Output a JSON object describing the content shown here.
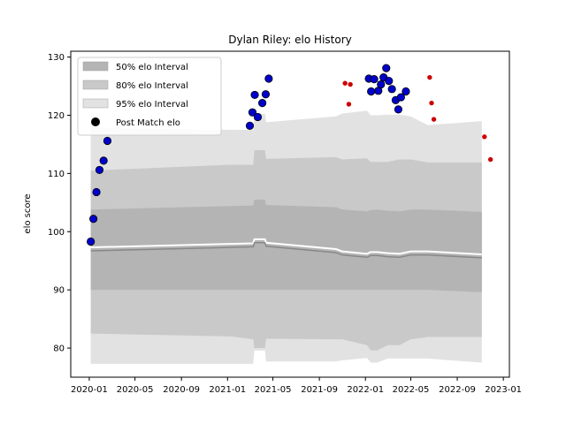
{
  "chart_data": {
    "type": "area",
    "title": "Dylan Riley: elo History",
    "xlabel": "",
    "ylabel": "elo score",
    "xlim": [
      "2019-11-13",
      "2023-01-17"
    ],
    "ylim": [
      75,
      131
    ],
    "x_ticks": [
      "2020-01",
      "2020-05",
      "2020-09",
      "2021-01",
      "2021-05",
      "2021-09",
      "2022-01",
      "2022-05",
      "2022-09",
      "2023-01"
    ],
    "y_ticks": [
      80,
      90,
      100,
      110,
      120,
      130
    ],
    "grid": false,
    "legend_position": "top-left",
    "legend": [
      {
        "label": "50% elo Interval",
        "color": "#b4b4b4"
      },
      {
        "label": "80% elo Interval",
        "color": "#c9c9c9"
      },
      {
        "label": "95% elo Interval",
        "color": "#e2e2e2"
      },
      {
        "label": "Post Match elo",
        "color": "#000000"
      }
    ],
    "bands": {
      "dates": [
        "2020-01-05",
        "2021-01-10",
        "2021-03-10",
        "2021-03-13",
        "2021-04-10",
        "2021-04-13",
        "2021-10-15",
        "2021-11-01",
        "2022-01-05",
        "2022-01-15",
        "2022-02-01",
        "2022-03-01",
        "2022-04-01",
        "2022-05-01",
        "2022-06-15",
        "2022-11-05"
      ],
      "mean": [
        96.7,
        97.3,
        97.4,
        98.1,
        98.1,
        97.5,
        96.4,
        96.0,
        95.6,
        95.9,
        95.9,
        95.7,
        95.6,
        96.0,
        96.0,
        95.5
      ],
      "p50_lower": [
        90.0,
        90.0,
        90.0,
        90.0,
        90.0,
        90.0,
        90.0,
        90.0,
        90.0,
        90.0,
        90.0,
        90.0,
        90.0,
        90.0,
        90.0,
        89.6
      ],
      "p50_upper": [
        103.8,
        104.4,
        104.5,
        105.5,
        105.5,
        104.6,
        104.2,
        103.8,
        103.5,
        103.7,
        103.8,
        103.6,
        103.5,
        103.8,
        103.8,
        103.4
      ],
      "p80_lower": [
        82.5,
        82.0,
        81.5,
        80.0,
        80.0,
        81.6,
        81.5,
        81.5,
        80.5,
        79.6,
        79.6,
        80.5,
        80.5,
        81.5,
        81.9,
        81.9
      ],
      "p80_upper": [
        110.5,
        111.5,
        111.5,
        114.0,
        114.0,
        112.5,
        112.8,
        112.4,
        112.6,
        112.0,
        112.0,
        112.0,
        112.4,
        112.4,
        111.9,
        111.9
      ],
      "p95_lower": [
        77.3,
        77.3,
        77.3,
        79.6,
        79.6,
        77.7,
        77.7,
        77.9,
        78.3,
        77.5,
        77.5,
        78.2,
        78.2,
        78.2,
        78.2,
        77.5
      ],
      "p95_upper": [
        117.8,
        117.5,
        117.5,
        120.2,
        120.2,
        118.8,
        119.8,
        120.3,
        120.8,
        120.0,
        120.0,
        120.1,
        120.1,
        119.8,
        118.3,
        119.0
      ]
    },
    "series": [
      {
        "name": "Post Match elo",
        "color": "#0000cc",
        "points": [
          {
            "x": "2020-01-05",
            "y": 98.3
          },
          {
            "x": "2020-01-12",
            "y": 102.2
          },
          {
            "x": "2020-01-20",
            "y": 106.8
          },
          {
            "x": "2020-01-28",
            "y": 110.6
          },
          {
            "x": "2020-02-08",
            "y": 112.2
          },
          {
            "x": "2020-02-18",
            "y": 115.6
          },
          {
            "x": "2021-03-01",
            "y": 118.2
          },
          {
            "x": "2021-03-08",
            "y": 120.5
          },
          {
            "x": "2021-03-14",
            "y": 123.5
          },
          {
            "x": "2021-03-22",
            "y": 119.7
          },
          {
            "x": "2021-04-03",
            "y": 122.1
          },
          {
            "x": "2021-04-12",
            "y": 123.6
          },
          {
            "x": "2021-04-20",
            "y": 126.3
          },
          {
            "x": "2022-01-10",
            "y": 126.3
          },
          {
            "x": "2022-01-16",
            "y": 124.1
          },
          {
            "x": "2022-01-24",
            "y": 126.2
          },
          {
            "x": "2022-02-04",
            "y": 124.2
          },
          {
            "x": "2022-02-11",
            "y": 125.3
          },
          {
            "x": "2022-02-18",
            "y": 126.5
          },
          {
            "x": "2022-02-25",
            "y": 128.1
          },
          {
            "x": "2022-03-04",
            "y": 125.9
          },
          {
            "x": "2022-03-12",
            "y": 124.5
          },
          {
            "x": "2022-03-22",
            "y": 122.6
          },
          {
            "x": "2022-03-29",
            "y": 121.0
          },
          {
            "x": "2022-04-05",
            "y": 123.1
          },
          {
            "x": "2022-04-18",
            "y": 124.1
          }
        ]
      },
      {
        "name": "",
        "color": "#cc0000",
        "points": [
          {
            "x": "2021-11-08",
            "y": 125.5
          },
          {
            "x": "2021-11-22",
            "y": 125.3
          },
          {
            "x": "2021-11-18",
            "y": 121.9
          },
          {
            "x": "2022-06-20",
            "y": 126.5
          },
          {
            "x": "2022-06-25",
            "y": 122.1
          },
          {
            "x": "2022-07-01",
            "y": 119.3
          },
          {
            "x": "2022-11-12",
            "y": 116.3
          },
          {
            "x": "2022-11-28",
            "y": 112.4
          }
        ]
      }
    ]
  }
}
